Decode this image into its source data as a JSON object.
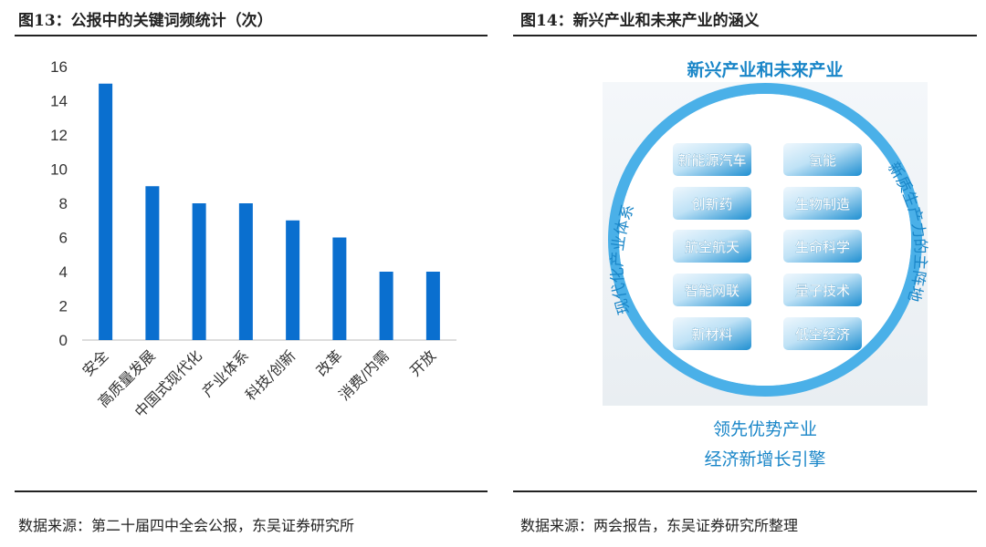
{
  "left": {
    "title": "图13：公报中的关键词频统计（次）",
    "source": "数据来源：第二十届四中全会公报，东吴证券研究所"
  },
  "right": {
    "title": "图14：新兴产业和未来产业的涵义",
    "source": "数据来源：两会报告，东吴证券研究所整理",
    "top_label": "新兴产业和未来产业",
    "left_arc_label": "现代化产业体系",
    "right_arc_label": "新质生产力的主阵地",
    "bottom_line1": "领先优势产业",
    "bottom_line2": "经济新增长引擎",
    "left_boxes": [
      "新能源汽车",
      "创新药",
      "航空航天",
      "智能网联",
      "新材料"
    ],
    "right_boxes": [
      "氢能",
      "生物制造",
      "生命科学",
      "量子技术",
      "低空经济"
    ],
    "colors": {
      "ring": "#4ab0e8",
      "box_top": "#eaf5fc",
      "box_bottom": "#1f8fd1",
      "title_text": "#1a86c8"
    }
  },
  "chart_data": {
    "type": "bar",
    "categories": [
      "安全",
      "高质量发展",
      "中国式现代化",
      "产业体系",
      "科技/创新",
      "改革",
      "消费/内需",
      "开放"
    ],
    "values": [
      15,
      9,
      8,
      8,
      7,
      6,
      4,
      4
    ],
    "title": "图13：公报中的关键词频统计（次）",
    "xlabel": "",
    "ylabel": "",
    "ylim": [
      0,
      16
    ],
    "yticks": [
      0,
      2,
      4,
      6,
      8,
      10,
      12,
      14,
      16
    ],
    "grid": false,
    "color": "#0a6fcf"
  }
}
